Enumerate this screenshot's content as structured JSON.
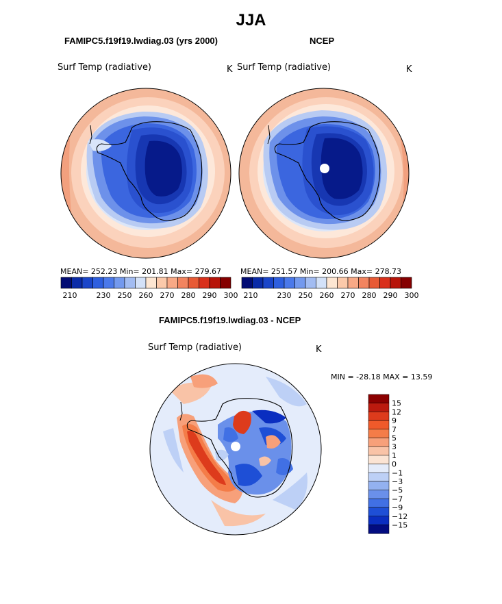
{
  "season": "JJA",
  "panels": {
    "model": {
      "title": "FAMIPC5.f19f19.lwdiag.03 (yrs 2000)",
      "variable": "Surf Temp (radiative)",
      "units": "K",
      "stats": "MEAN= 252.23   Min= 201.81   Max= 279.67"
    },
    "obs": {
      "title": "NCEP",
      "variable": "Surf Temp (radiative)",
      "units": "K",
      "stats": "MEAN= 251.57   Min= 200.66   Max= 278.73"
    },
    "diff": {
      "title": "FAMIPC5.f19f19.lwdiag.03 - NCEP",
      "variable": "Surf Temp (radiative)",
      "units": "K",
      "minmax": "MIN = -28.18 MAX =  13.59"
    }
  },
  "chart_data": [
    {
      "type": "heatmap",
      "projection": "south-polar-stereographic",
      "title": "FAMIPC5.f19f19.lwdiag.03 (yrs 2000)",
      "field": "Surf Temp (radiative)",
      "units": "K",
      "mean": 252.23,
      "min": 201.81,
      "max": 279.67,
      "colorbar": {
        "tick_labels": [
          "210",
          "230",
          "250",
          "260",
          "270",
          "280",
          "290",
          "300"
        ],
        "colors": [
          "#020c74",
          "#0a2ba8",
          "#1a45c9",
          "#2e5fdf",
          "#4b79ea",
          "#7399ee",
          "#a2bcf2",
          "#d3e1f8",
          "#fde6d2",
          "#fbc9aa",
          "#f8a986",
          "#f2845f",
          "#e85a35",
          "#d9301b",
          "#b71409",
          "#850000"
        ]
      }
    },
    {
      "type": "heatmap",
      "projection": "south-polar-stereographic",
      "title": "NCEP",
      "field": "Surf Temp (radiative)",
      "units": "K",
      "mean": 251.57,
      "min": 200.66,
      "max": 278.73,
      "colorbar": {
        "tick_labels": [
          "210",
          "230",
          "250",
          "260",
          "270",
          "280",
          "290",
          "300"
        ],
        "colors": [
          "#020c74",
          "#0a2ba8",
          "#1a45c9",
          "#2e5fdf",
          "#4b79ea",
          "#7399ee",
          "#a2bcf2",
          "#d3e1f8",
          "#fde6d2",
          "#fbc9aa",
          "#f8a986",
          "#f2845f",
          "#e85a35",
          "#d9301b",
          "#b71409",
          "#850000"
        ]
      }
    },
    {
      "type": "heatmap",
      "projection": "south-polar-stereographic",
      "title": "FAMIPC5.f19f19.lwdiag.03 - NCEP",
      "field": "Surf Temp (radiative)",
      "units": "K",
      "min": -28.18,
      "max": 13.59,
      "colorbar": {
        "tick_labels": [
          "15",
          "12",
          "9",
          "7",
          "5",
          "3",
          "1",
          "0",
          "−1",
          "−3",
          "−5",
          "−7",
          "−9",
          "−12",
          "−15"
        ],
        "colors": [
          "#8b0000",
          "#bb1a0e",
          "#dd3b1c",
          "#ef5a2a",
          "#f47c48",
          "#f7a07a",
          "#f9c3a7",
          "#fbe4d4",
          "#e4ecfb",
          "#bdd0f6",
          "#93b1f0",
          "#6a90ea",
          "#4170e4",
          "#1e4fd6",
          "#0a2ec0",
          "#020c80"
        ]
      }
    }
  ]
}
